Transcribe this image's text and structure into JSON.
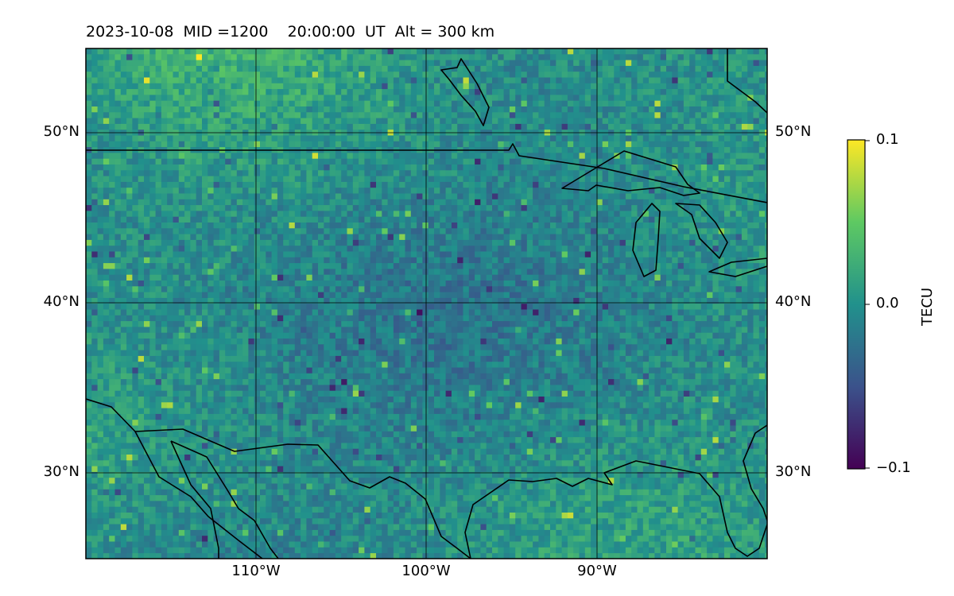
{
  "title": "2023-10-08  MID =1200    20:00:00  UT  Alt = 300 km",
  "map": {
    "lat_ticks": [
      "50°N",
      "40°N",
      "30°N"
    ],
    "lon_ticks": [
      "110°W",
      "100°W",
      "90°W"
    ],
    "lat_values": [
      50,
      40,
      30
    ],
    "lon_values": [
      -110,
      -100,
      -90
    ],
    "extent": {
      "lon_min": -120,
      "lon_max": -80,
      "lat_min": 25,
      "lat_max": 55
    }
  },
  "colorbar": {
    "label": "TECU",
    "ticks": [
      "0.1",
      "0.0",
      "−0.1"
    ],
    "min": -0.1,
    "max": 0.1,
    "colormap": "viridis",
    "stops": [
      "#440154",
      "#3b528b",
      "#21918c",
      "#5ec962",
      "#fde725"
    ]
  },
  "colors": {
    "border": "#000000",
    "grid": "#000000",
    "coast": "#000000"
  }
}
